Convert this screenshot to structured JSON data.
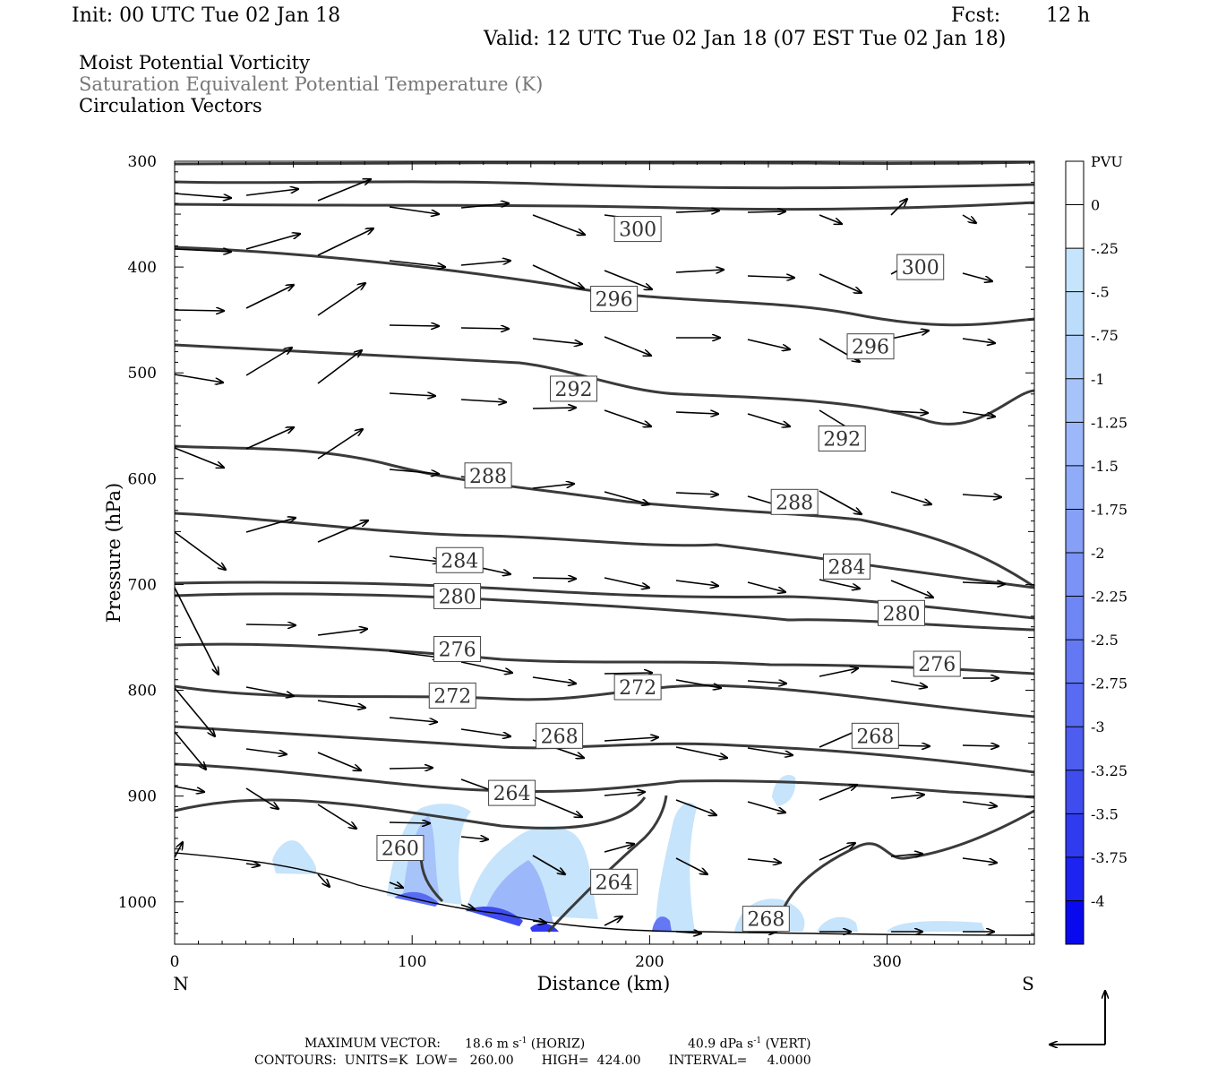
{
  "header": {
    "init": "Init: 00 UTC Tue 02 Jan 18",
    "fcst_label": "Fcst:",
    "fcst_value": "12 h",
    "valid": "Valid: 12 UTC Tue 02 Jan 18 (07 EST Tue 02 Jan 18)"
  },
  "fields": {
    "line1": "Moist Potential Vorticity",
    "line2": "Saturation Equivalent Potential Temperature (K)",
    "line3": "Circulation Vectors"
  },
  "footer": {
    "max_vector_label": "MAXIMUM VECTOR:",
    "max_vector_horiz": "18.6 m s",
    "horiz_tag": "(HORIZ)",
    "max_vector_vert": "40.9 dPa s",
    "vert_tag": "(VERT)",
    "exp": "-1",
    "contours": "CONTOURS:  UNITS=K  LOW=   260.00       HIGH=  424.00       INTERVAL=     4.0000"
  },
  "chart_data": {
    "type": "contour",
    "xlabel": "Distance (km)",
    "ylabel": "Pressure (hPa)",
    "x_end_left": "N",
    "x_end_right": "S",
    "xlim": [
      0,
      362
    ],
    "ylim": [
      1040,
      300
    ],
    "x_ticks": [
      0,
      100,
      200,
      300
    ],
    "y_ticks": [
      300,
      400,
      500,
      600,
      700,
      800,
      900,
      1000
    ],
    "colorbar": {
      "unit": "PVU",
      "labels": [
        "0",
        "-.25",
        "-.5",
        "-.75",
        "-1",
        "-1.25",
        "-1.5",
        "-1.75",
        "-2",
        "-2.25",
        "-2.5",
        "-2.75",
        "-3",
        "-3.25",
        "-3.5",
        "-3.75",
        "-4"
      ],
      "colors": [
        "#ffffff",
        "#ffffff",
        "#c6e4fb",
        "#bcdcfb",
        "#b0d0fb",
        "#a6c4fa",
        "#9cb8fa",
        "#90acf8",
        "#869ff7",
        "#7b93f6",
        "#6f86f5",
        "#6478f3",
        "#586bf2",
        "#4c5df0",
        "#3f4def",
        "#303aef",
        "#1d23f0",
        "#0909f0"
      ]
    },
    "contour_labels": [
      {
        "value": "300",
        "x": 195,
        "p": 364
      },
      {
        "value": "300",
        "x": 314,
        "p": 400
      },
      {
        "value": "296",
        "x": 185,
        "p": 430
      },
      {
        "value": "296",
        "x": 293,
        "p": 475
      },
      {
        "value": "292",
        "x": 168,
        "p": 515
      },
      {
        "value": "292",
        "x": 281,
        "p": 562
      },
      {
        "value": "288",
        "x": 132,
        "p": 597
      },
      {
        "value": "288",
        "x": 261,
        "p": 622
      },
      {
        "value": "284",
        "x": 120,
        "p": 677
      },
      {
        "value": "284",
        "x": 283,
        "p": 683
      },
      {
        "value": "280",
        "x": 119,
        "p": 711
      },
      {
        "value": "280",
        "x": 306,
        "p": 727
      },
      {
        "value": "276",
        "x": 119,
        "p": 761
      },
      {
        "value": "276",
        "x": 321,
        "p": 775
      },
      {
        "value": "272",
        "x": 117,
        "p": 805
      },
      {
        "value": "272",
        "x": 195,
        "p": 797
      },
      {
        "value": "268",
        "x": 162,
        "p": 843
      },
      {
        "value": "268",
        "x": 295,
        "p": 843
      },
      {
        "value": "268",
        "x": 249,
        "p": 1016
      },
      {
        "value": "264",
        "x": 142,
        "p": 897
      },
      {
        "value": "264",
        "x": 185,
        "p": 981
      },
      {
        "value": "260",
        "x": 95,
        "p": 949
      }
    ]
  }
}
